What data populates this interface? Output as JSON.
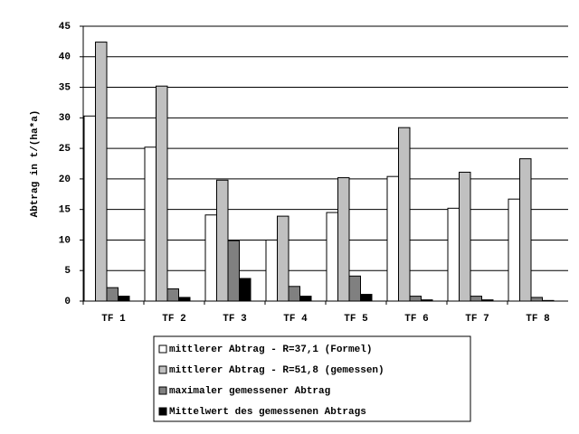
{
  "chart_data": {
    "type": "bar",
    "y_label": "Abtrag in t/(ha*a)",
    "categories": [
      "TF 1",
      "TF 2",
      "TF 3",
      "TF 4",
      "TF 5",
      "TF 6",
      "TF 7",
      "TF 8"
    ],
    "series": [
      {
        "name": "mittlerer Abtrag - R=37,1 (Formel)",
        "color": "#ffffff",
        "values": [
          30.3,
          25.2,
          14.1,
          10.0,
          14.5,
          20.4,
          15.2,
          16.7
        ]
      },
      {
        "name": "mittlerer Abtrag - R=51,8 (gemessen)",
        "color": "#c0c0c0",
        "values": [
          42.4,
          35.2,
          19.8,
          13.9,
          20.2,
          28.4,
          21.1,
          23.3
        ]
      },
      {
        "name": "maximaler gemessener Abtrag",
        "color": "#808080",
        "values": [
          2.2,
          2.0,
          9.9,
          2.4,
          4.1,
          0.8,
          0.8,
          0.6
        ]
      },
      {
        "name": "Mittelwert des gemessenen Abtrags",
        "color": "#000000",
        "values": [
          0.8,
          0.6,
          3.7,
          0.8,
          1.1,
          0.2,
          0.2,
          0.1
        ]
      }
    ],
    "ylim": [
      0,
      45
    ],
    "yticks": [
      0,
      5,
      10,
      15,
      20,
      25,
      30,
      35,
      40,
      45
    ],
    "grid": true
  }
}
